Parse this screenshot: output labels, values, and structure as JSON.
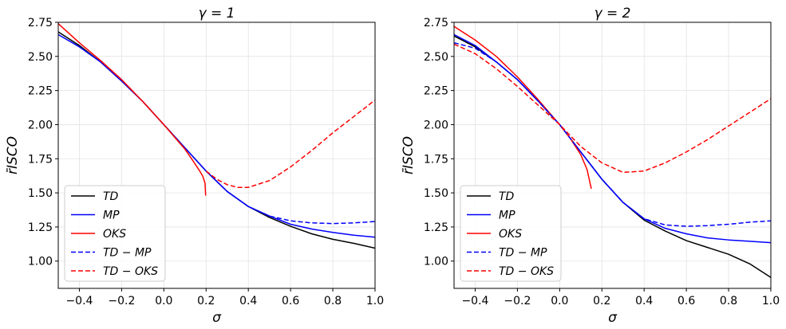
{
  "chart_data": [
    {
      "type": "line",
      "title": "γ = 1",
      "xlabel": "σ",
      "ylabel": "r̄ISCO",
      "xlim": [
        -0.5,
        1.0
      ],
      "ylim": [
        0.8,
        2.75
      ],
      "xticks": [
        "−0.4",
        "−0.2",
        "0.0",
        "0.2",
        "0.4",
        "0.6",
        "0.8",
        "1.0"
      ],
      "xtick_values": [
        -0.4,
        -0.2,
        0.0,
        0.2,
        0.4,
        0.6,
        0.8,
        1.0
      ],
      "yticks": [
        "1.00",
        "1.25",
        "1.50",
        "1.75",
        "2.00",
        "2.25",
        "2.50",
        "2.75"
      ],
      "ytick_values": [
        1.0,
        1.25,
        1.5,
        1.75,
        2.0,
        2.25,
        2.5,
        2.75
      ],
      "grid": true,
      "legend_position": "lower-left",
      "series": [
        {
          "name": "TD",
          "color": "#000000",
          "dash": "solid",
          "points": [
            [
              -0.5,
              2.68
            ],
            [
              -0.4,
              2.58
            ],
            [
              -0.3,
              2.46
            ],
            [
              -0.2,
              2.32
            ],
            [
              -0.1,
              2.17
            ],
            [
              0.0,
              2.0
            ],
            [
              0.1,
              1.83
            ],
            [
              0.2,
              1.66
            ],
            [
              0.3,
              1.51
            ],
            [
              0.4,
              1.4
            ],
            [
              0.5,
              1.32
            ],
            [
              0.6,
              1.255
            ],
            [
              0.7,
              1.2
            ],
            [
              0.8,
              1.16
            ],
            [
              0.9,
              1.13
            ],
            [
              1.0,
              1.095
            ]
          ]
        },
        {
          "name": "MP",
          "color": "#0000ff",
          "dash": "solid",
          "points": [
            [
              -0.5,
              2.66
            ],
            [
              -0.4,
              2.57
            ],
            [
              -0.3,
              2.46
            ],
            [
              -0.2,
              2.32
            ],
            [
              -0.1,
              2.17
            ],
            [
              0.0,
              2.0
            ],
            [
              0.1,
              1.83
            ],
            [
              0.2,
              1.66
            ],
            [
              0.3,
              1.51
            ],
            [
              0.4,
              1.4
            ],
            [
              0.5,
              1.33
            ],
            [
              0.6,
              1.27
            ],
            [
              0.7,
              1.235
            ],
            [
              0.8,
              1.21
            ],
            [
              0.9,
              1.19
            ],
            [
              1.0,
              1.175
            ]
          ]
        },
        {
          "name": "OKS",
          "color": "#ff0000",
          "dash": "solid",
          "points": [
            [
              -0.5,
              2.74
            ],
            [
              -0.45,
              2.67
            ],
            [
              -0.4,
              2.6
            ],
            [
              -0.3,
              2.47
            ],
            [
              -0.2,
              2.33
            ],
            [
              -0.1,
              2.17
            ],
            [
              0.0,
              2.0
            ],
            [
              0.05,
              1.91
            ],
            [
              0.1,
              1.82
            ],
            [
              0.14,
              1.73
            ],
            [
              0.17,
              1.66
            ],
            [
              0.185,
              1.62
            ],
            [
              0.195,
              1.57
            ],
            [
              0.198,
              1.48
            ]
          ]
        },
        {
          "name": "TD − MP",
          "color": "#0000ff",
          "dash": "dashed",
          "points": [
            [
              0.2,
              1.66
            ],
            [
              0.3,
              1.51
            ],
            [
              0.4,
              1.4
            ],
            [
              0.5,
              1.33
            ],
            [
              0.6,
              1.295
            ],
            [
              0.7,
              1.28
            ],
            [
              0.8,
              1.275
            ],
            [
              0.9,
              1.28
            ],
            [
              1.0,
              1.29
            ]
          ]
        },
        {
          "name": "TD − OKS",
          "color": "#ff0000",
          "dash": "dashed",
          "points": [
            [
              0.2,
              1.66
            ],
            [
              0.25,
              1.6
            ],
            [
              0.3,
              1.56
            ],
            [
              0.35,
              1.54
            ],
            [
              0.4,
              1.54
            ],
            [
              0.5,
              1.59
            ],
            [
              0.6,
              1.69
            ],
            [
              0.7,
              1.81
            ],
            [
              0.8,
              1.94
            ],
            [
              0.9,
              2.06
            ],
            [
              1.0,
              2.18
            ]
          ]
        }
      ]
    },
    {
      "type": "line",
      "title": "γ = 2",
      "xlabel": "σ",
      "ylabel": "r̄ISCO",
      "xlim": [
        -0.5,
        1.0
      ],
      "ylim": [
        0.8,
        2.75
      ],
      "xticks": [
        "−0.4",
        "−0.2",
        "0.0",
        "0.2",
        "0.4",
        "0.6",
        "0.8",
        "1.0"
      ],
      "xtick_values": [
        -0.4,
        -0.2,
        0.0,
        0.2,
        0.4,
        0.6,
        0.8,
        1.0
      ],
      "yticks": [
        "1.00",
        "1.25",
        "1.50",
        "1.75",
        "2.00",
        "2.25",
        "2.50",
        "2.75"
      ],
      "ytick_values": [
        1.0,
        1.25,
        1.5,
        1.75,
        2.0,
        2.25,
        2.5,
        2.75
      ],
      "grid": true,
      "legend_position": "lower-left",
      "series": [
        {
          "name": "TD",
          "color": "#000000",
          "dash": "solid",
          "points": [
            [
              -0.5,
              2.65
            ],
            [
              -0.4,
              2.57
            ],
            [
              -0.3,
              2.46
            ],
            [
              -0.2,
              2.33
            ],
            [
              -0.1,
              2.17
            ],
            [
              0.0,
              2.0
            ],
            [
              0.1,
              1.8
            ],
            [
              0.2,
              1.6
            ],
            [
              0.3,
              1.43
            ],
            [
              0.4,
              1.3
            ],
            [
              0.5,
              1.22
            ],
            [
              0.6,
              1.15
            ],
            [
              0.7,
              1.1
            ],
            [
              0.8,
              1.05
            ],
            [
              0.9,
              0.98
            ],
            [
              1.0,
              0.88
            ]
          ]
        },
        {
          "name": "MP",
          "color": "#0000ff",
          "dash": "solid",
          "points": [
            [
              -0.5,
              2.66
            ],
            [
              -0.4,
              2.58
            ],
            [
              -0.3,
              2.46
            ],
            [
              -0.2,
              2.33
            ],
            [
              -0.1,
              2.17
            ],
            [
              0.0,
              2.0
            ],
            [
              0.1,
              1.8
            ],
            [
              0.2,
              1.6
            ],
            [
              0.3,
              1.43
            ],
            [
              0.4,
              1.31
            ],
            [
              0.5,
              1.24
            ],
            [
              0.6,
              1.2
            ],
            [
              0.7,
              1.17
            ],
            [
              0.8,
              1.155
            ],
            [
              0.9,
              1.145
            ],
            [
              1.0,
              1.135
            ]
          ]
        },
        {
          "name": "OKS",
          "color": "#ff0000",
          "dash": "solid",
          "points": [
            [
              -0.5,
              2.72
            ],
            [
              -0.45,
              2.67
            ],
            [
              -0.4,
              2.62
            ],
            [
              -0.3,
              2.5
            ],
            [
              -0.2,
              2.35
            ],
            [
              -0.1,
              2.18
            ],
            [
              0.0,
              2.0
            ],
            [
              0.05,
              1.9
            ],
            [
              0.1,
              1.78
            ],
            [
              0.13,
              1.67
            ],
            [
              0.15,
              1.53
            ]
          ]
        },
        {
          "name": "TD − MP",
          "color": "#0000ff",
          "dash": "dashed",
          "points": [
            [
              -0.5,
              2.6
            ],
            [
              -0.4,
              2.56
            ],
            [
              -0.3,
              2.46
            ],
            [
              -0.2,
              2.33
            ],
            [
              -0.1,
              2.17
            ],
            [
              0.0,
              2.0
            ],
            [
              0.1,
              1.8
            ],
            [
              0.2,
              1.6
            ],
            [
              0.3,
              1.43
            ],
            [
              0.4,
              1.31
            ],
            [
              0.5,
              1.265
            ],
            [
              0.6,
              1.255
            ],
            [
              0.7,
              1.26
            ],
            [
              0.8,
              1.27
            ],
            [
              0.9,
              1.285
            ],
            [
              1.0,
              1.295
            ]
          ]
        },
        {
          "name": "TD − OKS",
          "color": "#ff0000",
          "dash": "dashed",
          "points": [
            [
              -0.5,
              2.59
            ],
            [
              -0.4,
              2.52
            ],
            [
              -0.3,
              2.41
            ],
            [
              -0.2,
              2.28
            ],
            [
              -0.1,
              2.14
            ],
            [
              0.0,
              2.0
            ],
            [
              0.1,
              1.84
            ],
            [
              0.2,
              1.72
            ],
            [
              0.3,
              1.65
            ],
            [
              0.4,
              1.66
            ],
            [
              0.5,
              1.72
            ],
            [
              0.6,
              1.8
            ],
            [
              0.7,
              1.89
            ],
            [
              0.8,
              1.99
            ],
            [
              0.9,
              2.09
            ],
            [
              1.0,
              2.19
            ]
          ]
        }
      ]
    }
  ]
}
